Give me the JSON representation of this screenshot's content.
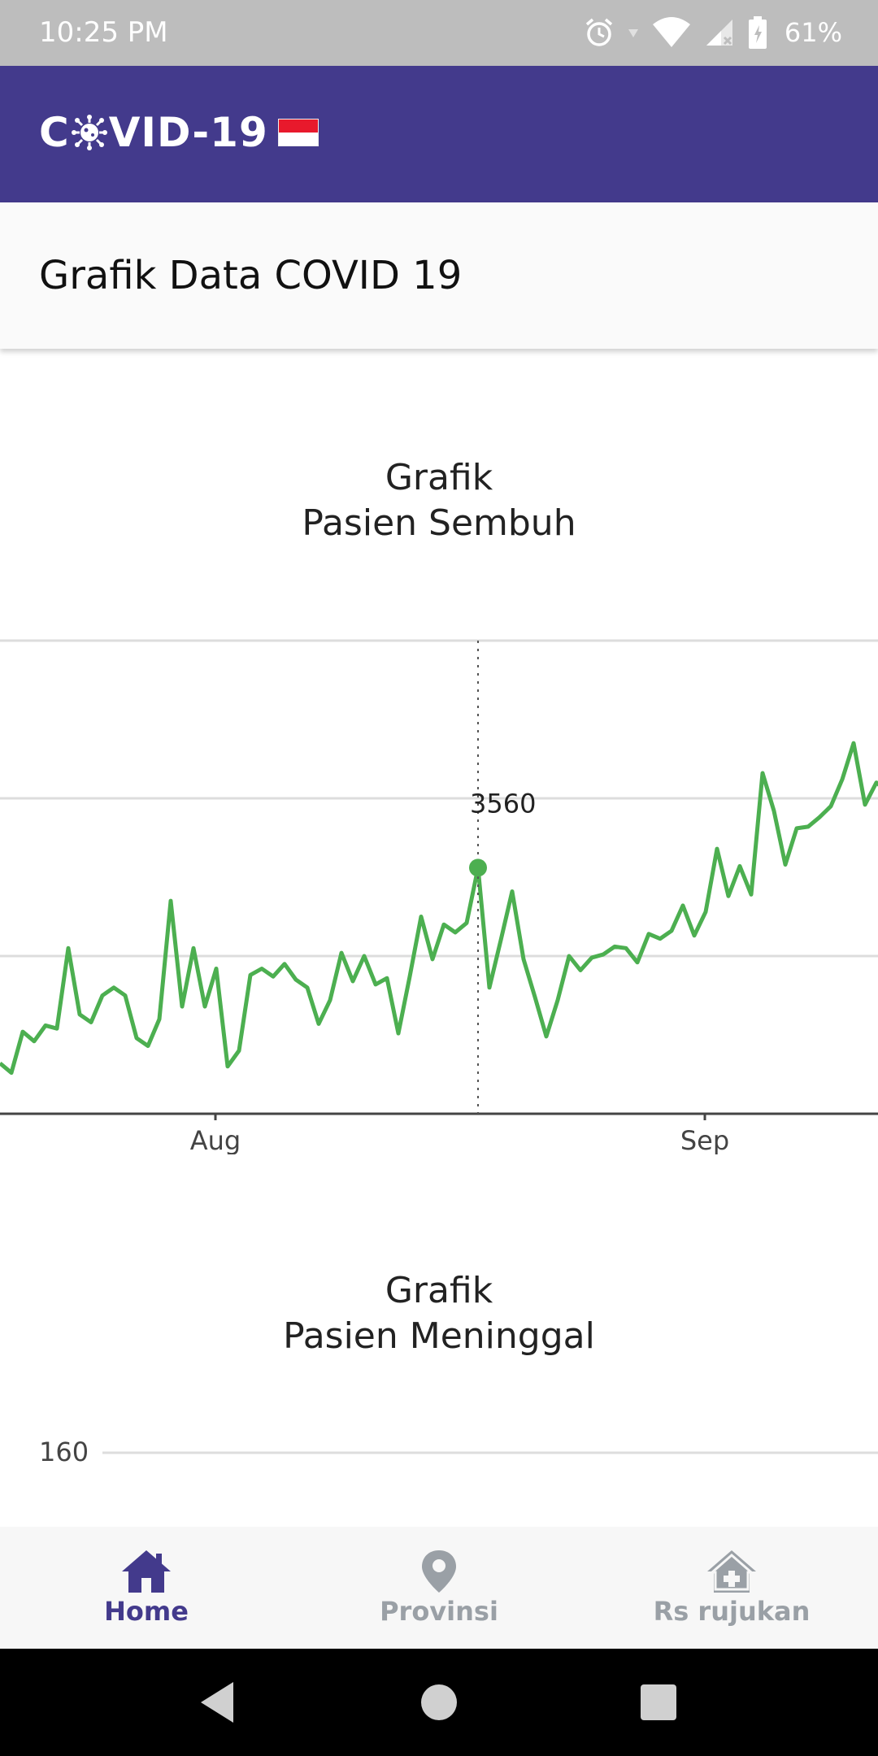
{
  "status_bar": {
    "time": "10:25 PM",
    "battery": "61%",
    "icons": [
      "alarm-icon",
      "wifi-icon",
      "signal-icon",
      "battery-icon"
    ]
  },
  "app_bar": {
    "logo_prefix": "C",
    "logo_suffix": "VID-19",
    "logo_flag": "indonesia-flag",
    "color": "#433a8c"
  },
  "header": {
    "title": "Grafik Data COVID 19"
  },
  "charts": {
    "recovered": {
      "title_line1": "Grafik",
      "title_line2": "Pasien Sembuh",
      "tooltip_value": "3560"
    },
    "deaths": {
      "title_line1": "Grafik",
      "title_line2": "Pasien Meninggal",
      "first_tick": "160"
    }
  },
  "chart_data": [
    {
      "type": "line",
      "title": "Grafik Pasien Sembuh",
      "x_tick_labels": [
        "Aug",
        "Sep"
      ],
      "series": [
        {
          "color": "#4caf50",
          "values": [
            2320,
            2260,
            2520,
            2460,
            2560,
            2540,
            3050,
            2630,
            2580,
            2750,
            2800,
            2750,
            2480,
            2430,
            2600,
            3350,
            2680,
            3050,
            2680,
            2920,
            2300,
            2400,
            2880,
            2920,
            2870,
            2950,
            2850,
            2800,
            2570,
            2720,
            3020,
            2840,
            3000,
            2820,
            2860,
            2510,
            2870,
            3250,
            2980,
            3200,
            3150,
            3210,
            3560,
            2800,
            3100,
            3410,
            2980,
            2740,
            2490,
            2720,
            3000,
            2910,
            2990,
            3010,
            3060,
            3050,
            2960,
            3140,
            3110,
            3160,
            3320,
            3130,
            3280,
            3680,
            3380,
            3570,
            3390,
            4160,
            3920,
            3580,
            3810,
            3820,
            3880,
            3950,
            4120,
            4350,
            3960,
            4100,
            4040
          ]
        }
      ],
      "highlight": {
        "index": 42,
        "value": 3560
      },
      "grid": true
    },
    {
      "type": "line",
      "title": "Grafik Pasien Meninggal",
      "y_tick_labels": [
        "160"
      ],
      "series": []
    }
  ],
  "bottom_nav": {
    "items": [
      {
        "label": "Home",
        "icon": "home-icon",
        "active": true
      },
      {
        "label": "Provinsi",
        "icon": "map-pin-icon",
        "active": false
      },
      {
        "label": "Rs rujukan",
        "icon": "hospital-icon",
        "active": false
      }
    ],
    "active_color": "#433a8c",
    "inactive_color": "#9aa0a6"
  }
}
